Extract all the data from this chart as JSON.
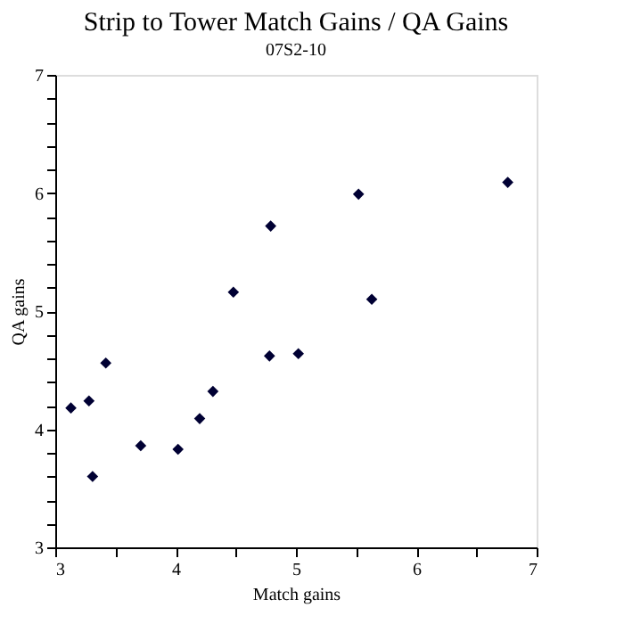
{
  "chart_data": {
    "type": "scatter",
    "title": "Strip to Tower Match Gains / QA Gains",
    "subtitle": "07S2-10",
    "xlabel": "Match gains",
    "ylabel": "QA gains",
    "x": [
      3.13,
      3.28,
      3.31,
      3.42,
      3.71,
      4.02,
      4.2,
      4.31,
      4.48,
      4.78,
      4.79,
      5.02,
      5.52,
      5.63,
      6.76
    ],
    "series": [
      {
        "color": "#000033",
        "values": [
          4.18,
          4.24,
          3.6,
          4.56,
          3.86,
          3.83,
          4.09,
          4.32,
          5.16,
          4.62,
          5.72,
          4.64,
          5.99,
          5.1,
          6.09
        ]
      }
    ],
    "xlim": [
      3,
      7
    ],
    "ylim": [
      3,
      7
    ],
    "xticks": [
      3,
      {
        "value": 3.5,
        "label": null
      },
      4,
      {
        "value": 4.5,
        "label": null
      },
      5,
      {
        "value": 5.5,
        "label": null
      },
      6,
      {
        "value": 6.5,
        "label": null
      },
      7
    ],
    "yticks": [
      3,
      {
        "value": 3.2,
        "label": null
      },
      {
        "value": 3.4,
        "label": null
      },
      {
        "value": 3.6,
        "label": null
      },
      {
        "value": 3.8,
        "label": null
      },
      4,
      {
        "value": 4.2,
        "label": null
      },
      {
        "value": 4.4,
        "label": null
      },
      {
        "value": 4.6,
        "label": null
      },
      {
        "value": 4.8,
        "label": null
      },
      5,
      {
        "value": 5.2,
        "label": null
      },
      {
        "value": 5.4,
        "label": null
      },
      {
        "value": 5.6,
        "label": null
      },
      {
        "value": 5.8,
        "label": null
      },
      6,
      {
        "value": 6.2,
        "label": null
      },
      {
        "value": 6.4,
        "label": null
      },
      {
        "value": 6.6,
        "label": null
      },
      {
        "value": 6.8,
        "label": null
      },
      7
    ],
    "grid": false,
    "legend": false,
    "marker": "diamond"
  }
}
